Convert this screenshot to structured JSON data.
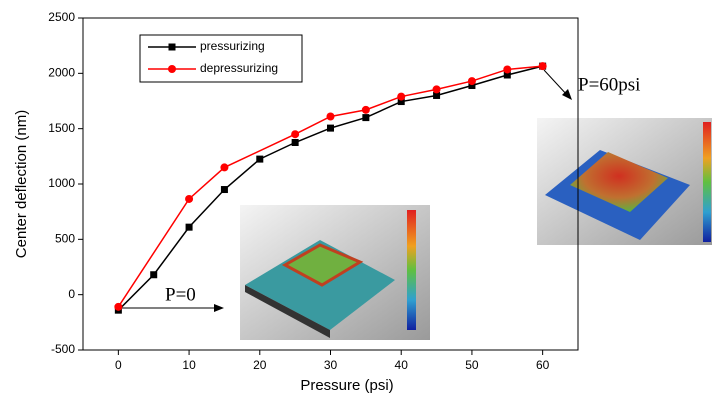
{
  "chart_data": {
    "type": "line",
    "xlabel": "Pressure (psi)",
    "ylabel": "Center deflection (nm)",
    "xlim": [
      -5,
      65
    ],
    "xticks": [
      0,
      10,
      20,
      30,
      40,
      50,
      60
    ],
    "ylim": [
      -500,
      2500
    ],
    "yticks": [
      -500,
      0,
      500,
      1000,
      1500,
      2000,
      2500
    ],
    "legend": "upper left",
    "series": [
      {
        "name": "pressurizing",
        "color": "#000000",
        "marker": "square",
        "x": [
          0,
          5,
          10,
          15,
          20,
          25,
          30,
          35,
          40,
          45,
          50,
          55,
          60
        ],
        "values": [
          -140,
          180,
          610,
          950,
          1225,
          1375,
          1505,
          1600,
          1745,
          1800,
          1890,
          1985,
          2065
        ]
      },
      {
        "name": "depressurizing",
        "color": "#ff0000",
        "marker": "circle",
        "x": [
          0,
          10,
          15,
          25,
          30,
          35,
          40,
          45,
          50,
          55,
          60
        ],
        "values": [
          -110,
          865,
          1150,
          1450,
          1610,
          1670,
          1790,
          1855,
          1930,
          2035,
          2065
        ]
      }
    ],
    "annotations": [
      {
        "text": "P=0"
      },
      {
        "text": "P=60psi"
      }
    ]
  }
}
